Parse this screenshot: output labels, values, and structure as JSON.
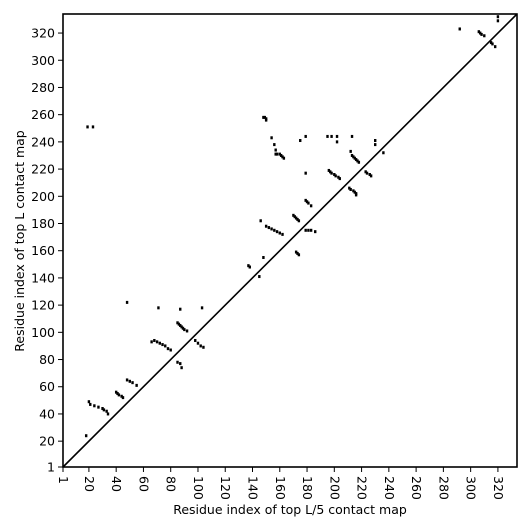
{
  "chart_data": {
    "type": "scatter",
    "xlabel": "Residue index of top L/5 contact map",
    "ylabel": "Residue index of top L contact map",
    "xlim": [
      1,
      334
    ],
    "ylim": [
      1,
      334
    ],
    "xticks": [
      1,
      20,
      40,
      60,
      80,
      100,
      120,
      140,
      160,
      180,
      200,
      220,
      240,
      260,
      280,
      300,
      320
    ],
    "yticks": [
      1,
      20,
      40,
      60,
      80,
      100,
      120,
      140,
      160,
      180,
      200,
      220,
      240,
      260,
      280,
      300,
      320
    ],
    "diagonal": true,
    "color": "#000000",
    "x": [
      19,
      23,
      148,
      149,
      150,
      150,
      154,
      156,
      157,
      157,
      158,
      160,
      161,
      162,
      163,
      179,
      175,
      195,
      198,
      202,
      202,
      213,
      212,
      213,
      214,
      215,
      216,
      217,
      218,
      230,
      230,
      236,
      196,
      197,
      198,
      200,
      201,
      203,
      204,
      211,
      212,
      214,
      215,
      216,
      216,
      223,
      224,
      226,
      227,
      292,
      306,
      307,
      308,
      310,
      315,
      316,
      318,
      320,
      320,
      146,
      148,
      150,
      152,
      154,
      156,
      158,
      160,
      162,
      170,
      171,
      172,
      173,
      174,
      179,
      179,
      180,
      181,
      183,
      179,
      181,
      183,
      186,
      172,
      173,
      174,
      137,
      138,
      145,
      20,
      21,
      24,
      27,
      30,
      31,
      33,
      34,
      40,
      41,
      42,
      44,
      45,
      48,
      50,
      52,
      55,
      48,
      71,
      87,
      103,
      66,
      68,
      70,
      72,
      74,
      76,
      78,
      80,
      85,
      86,
      87,
      88,
      89,
      90,
      92,
      85,
      87,
      88,
      98,
      100,
      102,
      104,
      18
    ],
    "values": [
      251,
      251,
      258,
      258,
      257,
      256,
      243,
      238,
      234,
      231,
      231,
      231,
      230,
      229,
      228,
      244,
      241,
      244,
      244,
      244,
      240,
      244,
      233,
      230,
      229,
      228,
      227,
      226,
      225,
      241,
      238,
      232,
      219,
      218,
      217,
      216,
      215,
      214,
      213,
      206,
      205,
      204,
      203,
      202,
      201,
      218,
      217,
      216,
      215,
      323,
      321,
      320,
      319,
      318,
      313,
      312,
      310,
      332,
      329,
      182,
      155,
      178,
      177,
      176,
      175,
      174,
      173,
      172,
      186,
      185,
      184,
      183,
      182,
      217,
      197,
      196,
      195,
      193,
      175,
      175,
      175,
      174,
      159,
      158,
      157,
      149,
      148,
      141,
      49,
      47,
      46,
      45,
      44,
      43,
      42,
      40,
      56,
      55,
      54,
      53,
      52,
      65,
      64,
      63,
      61,
      122,
      118,
      117,
      118,
      93,
      94,
      93,
      92,
      91,
      90,
      88,
      87,
      107,
      106,
      105,
      104,
      103,
      102,
      101,
      78,
      77,
      74,
      94,
      92,
      90,
      89,
      24
    ]
  }
}
